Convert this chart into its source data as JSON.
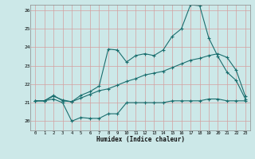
{
  "xlabel": "Humidex (Indice chaleur)",
  "bg_color": "#cce8e8",
  "line_color": "#1a6e6e",
  "grid_color": "#d4a0a0",
  "xlim": [
    -0.5,
    23.5
  ],
  "ylim": [
    19.5,
    26.3
  ],
  "yticks": [
    20,
    21,
    22,
    23,
    24,
    25,
    26
  ],
  "xticks": [
    0,
    1,
    2,
    3,
    4,
    5,
    6,
    7,
    8,
    9,
    10,
    11,
    12,
    13,
    14,
    15,
    16,
    17,
    18,
    19,
    20,
    21,
    22,
    23
  ],
  "line1_x": [
    0,
    1,
    2,
    3,
    4,
    5,
    6,
    7,
    8,
    9,
    10,
    11,
    12,
    13,
    14,
    15,
    16,
    17,
    18,
    19,
    20,
    21,
    22,
    23
  ],
  "line1_y": [
    21.1,
    21.1,
    21.2,
    21.0,
    20.0,
    20.2,
    20.15,
    20.15,
    20.4,
    20.4,
    21.0,
    21.0,
    21.0,
    21.0,
    21.0,
    21.1,
    21.1,
    21.1,
    21.1,
    21.2,
    21.2,
    21.1,
    21.1,
    21.1
  ],
  "line2_x": [
    0,
    1,
    2,
    3,
    4,
    5,
    6,
    7,
    8,
    9,
    10,
    11,
    12,
    13,
    14,
    15,
    16,
    17,
    18,
    19,
    20,
    21,
    22,
    23
  ],
  "line2_y": [
    21.1,
    21.1,
    21.4,
    21.1,
    21.05,
    21.4,
    21.6,
    21.9,
    23.9,
    23.85,
    23.2,
    23.55,
    23.65,
    23.55,
    23.85,
    24.6,
    25.0,
    26.3,
    26.25,
    24.5,
    23.5,
    22.65,
    22.2,
    21.2
  ],
  "line3_x": [
    0,
    1,
    2,
    3,
    4,
    5,
    6,
    7,
    8,
    9,
    10,
    11,
    12,
    13,
    14,
    15,
    16,
    17,
    18,
    19,
    20,
    21,
    22,
    23
  ],
  "line3_y": [
    21.1,
    21.1,
    21.35,
    21.15,
    21.05,
    21.25,
    21.45,
    21.65,
    21.75,
    21.95,
    22.15,
    22.3,
    22.5,
    22.6,
    22.7,
    22.9,
    23.1,
    23.3,
    23.4,
    23.55,
    23.65,
    23.45,
    22.75,
    21.35
  ]
}
